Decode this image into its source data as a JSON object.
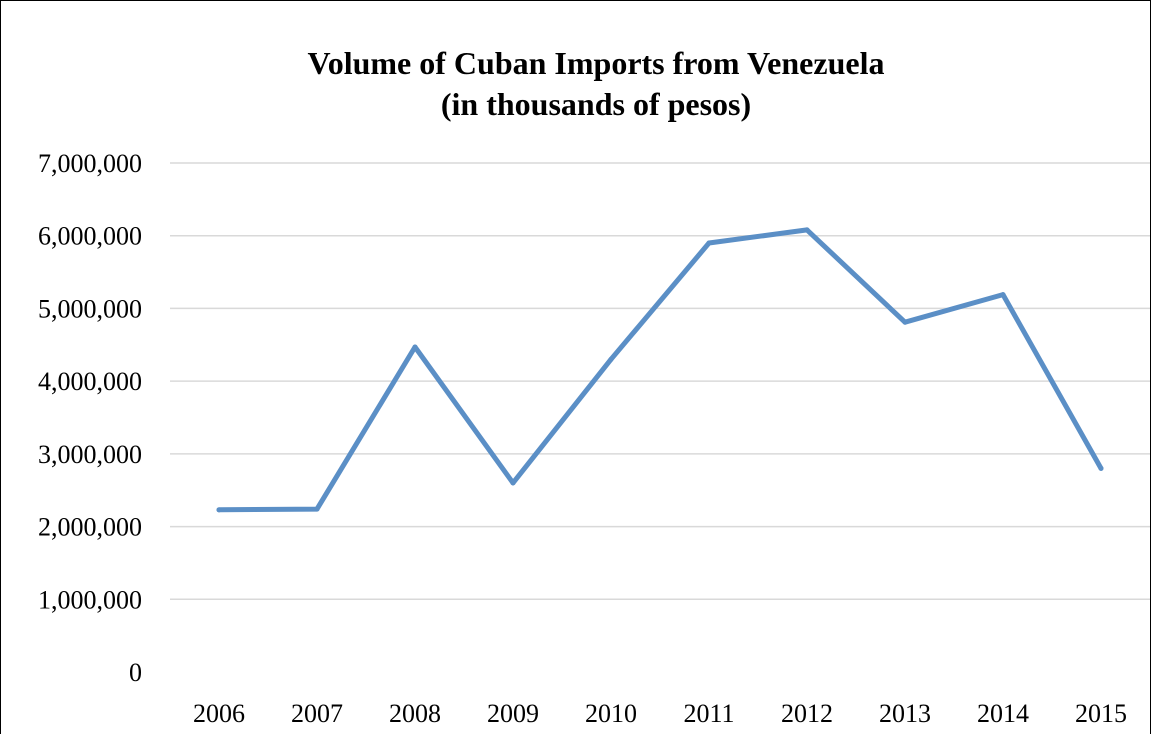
{
  "chart_data": {
    "type": "line",
    "title_lines": [
      "Volume of Cuban Imports from Venezuela",
      "(in thousands of pesos)"
    ],
    "xlabel": "",
    "ylabel": "",
    "categories": [
      "2006",
      "2007",
      "2008",
      "2009",
      "2010",
      "2011",
      "2012",
      "2013",
      "2014",
      "2015"
    ],
    "series": [
      {
        "values": [
          2230000,
          2240000,
          4470000,
          2600000,
          4300000,
          5900000,
          6080000,
          4810000,
          5190000,
          2800000
        ],
        "color": "#5b8fc6"
      }
    ],
    "ylim": [
      0,
      7000000
    ],
    "yticks": [
      0,
      1000000,
      2000000,
      3000000,
      4000000,
      5000000,
      6000000,
      7000000
    ],
    "ytick_labels": [
      "0",
      "1,000,000",
      "2,000,000",
      "3,000,000",
      "4,000,000",
      "5,000,000",
      "6,000,000",
      "7,000,000"
    ],
    "grid": true,
    "legend": "none"
  }
}
